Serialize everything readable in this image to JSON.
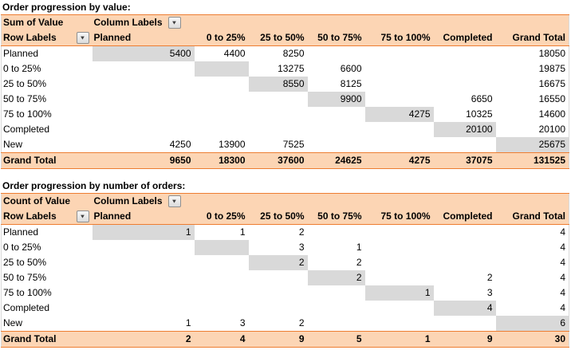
{
  "icons": {
    "dropdown_arrow": "▼"
  },
  "colors": {
    "header_fill": "#fcd5b4",
    "accent_border": "#ed7d31",
    "shaded_cell": "#d9d9d9",
    "text": "#000000"
  },
  "columns": [
    "Planned",
    "0 to 25%",
    "25 to 50%",
    "50 to 75%",
    "75 to 100%",
    "Completed",
    "Grand Total"
  ],
  "tables": [
    {
      "title": "Order progression by value:",
      "measure": "Sum of Value",
      "column_labels": "Column Labels",
      "row_labels": "Row Labels",
      "rows": [
        {
          "label": "Planned",
          "cells": [
            "5400",
            "4400",
            "8250",
            "",
            "",
            ""
          ],
          "gt": "18050",
          "shade": 0
        },
        {
          "label": "0 to 25%",
          "cells": [
            "",
            "",
            "13275",
            "6600",
            "",
            ""
          ],
          "gt": "19875",
          "shade": 1
        },
        {
          "label": "25 to 50%",
          "cells": [
            "",
            "",
            "8550",
            "8125",
            "",
            ""
          ],
          "gt": "16675",
          "shade": 2
        },
        {
          "label": "50 to 75%",
          "cells": [
            "",
            "",
            "",
            "9900",
            "",
            "6650"
          ],
          "gt": "16550",
          "shade": 3
        },
        {
          "label": "75 to 100%",
          "cells": [
            "",
            "",
            "",
            "",
            "4275",
            "10325"
          ],
          "gt": "14600",
          "shade": 4
        },
        {
          "label": "Completed",
          "cells": [
            "",
            "",
            "",
            "",
            "",
            "20100"
          ],
          "gt": "20100",
          "shade": 5
        },
        {
          "label": "New",
          "cells": [
            "4250",
            "13900",
            "7525",
            "",
            "",
            ""
          ],
          "gt": "25675",
          "shade": 6
        }
      ],
      "total": {
        "label": "Grand Total",
        "cells": [
          "9650",
          "18300",
          "37600",
          "24625",
          "4275",
          "37075"
        ],
        "gt": "131525"
      }
    },
    {
      "title": "Order progression by number of orders:",
      "measure": "Count of Value",
      "column_labels": "Column Labels",
      "row_labels": "Row Labels",
      "rows": [
        {
          "label": "Planned",
          "cells": [
            "1",
            "1",
            "2",
            "",
            "",
            ""
          ],
          "gt": "4",
          "shade": 0
        },
        {
          "label": "0 to 25%",
          "cells": [
            "",
            "",
            "3",
            "1",
            "",
            ""
          ],
          "gt": "4",
          "shade": 1
        },
        {
          "label": "25 to 50%",
          "cells": [
            "",
            "",
            "2",
            "2",
            "",
            ""
          ],
          "gt": "4",
          "shade": 2
        },
        {
          "label": "50 to 75%",
          "cells": [
            "",
            "",
            "",
            "2",
            "",
            "2"
          ],
          "gt": "4",
          "shade": 3
        },
        {
          "label": "75 to 100%",
          "cells": [
            "",
            "",
            "",
            "",
            "1",
            "3"
          ],
          "gt": "4",
          "shade": 4
        },
        {
          "label": "Completed",
          "cells": [
            "",
            "",
            "",
            "",
            "",
            "4"
          ],
          "gt": "4",
          "shade": 5
        },
        {
          "label": "New",
          "cells": [
            "1",
            "3",
            "2",
            "",
            "",
            ""
          ],
          "gt": "6",
          "shade": 6
        }
      ],
      "total": {
        "label": "Grand Total",
        "cells": [
          "2",
          "4",
          "9",
          "5",
          "1",
          "9"
        ],
        "gt": "30"
      }
    }
  ]
}
